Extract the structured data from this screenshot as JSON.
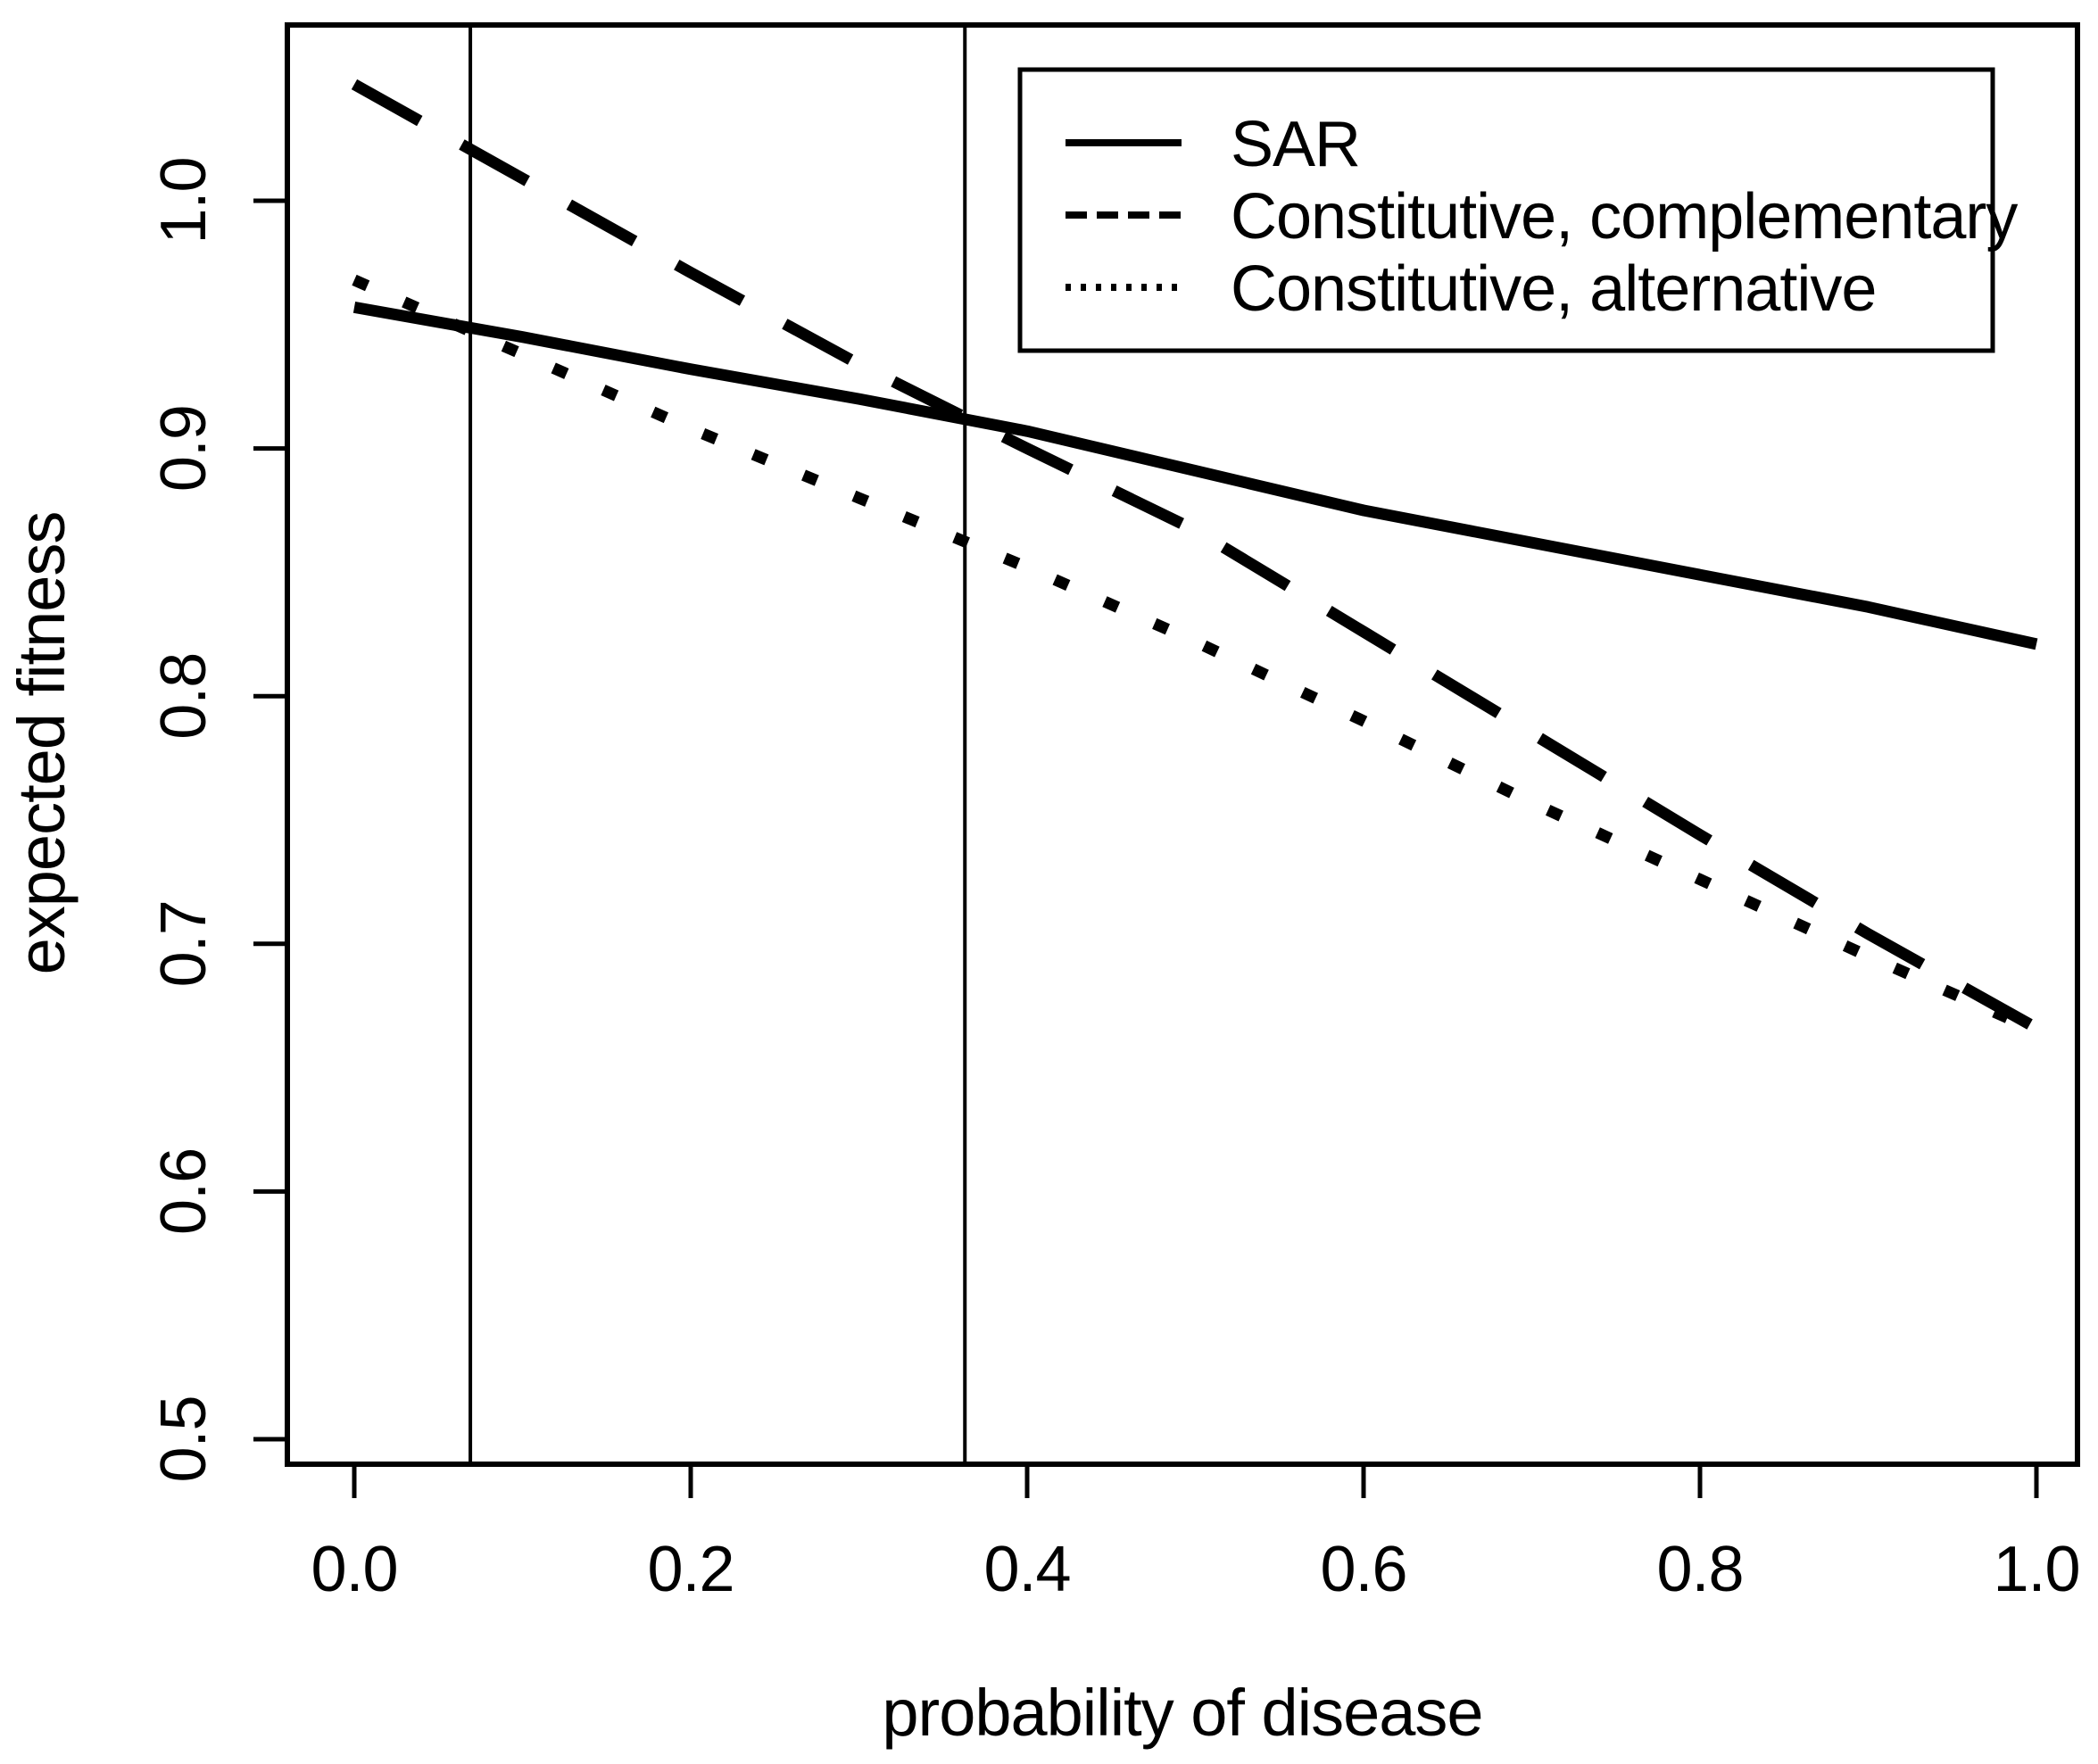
{
  "chart_data": {
    "type": "line",
    "title": "",
    "xlabel": "probability of disease",
    "ylabel": "expected fitness",
    "x_tick_values": [
      0.0,
      0.2,
      0.4,
      0.6,
      0.8,
      1.0
    ],
    "x_tick_labels": [
      "0.0",
      "0.2",
      "0.4",
      "0.6",
      "0.8",
      "1.0"
    ],
    "y_tick_values": [
      1.0,
      0.9,
      0.8,
      0.7,
      0.6,
      0.5
    ],
    "y_tick_labels": [
      "1.0",
      "0.9",
      "0.8",
      "0.7",
      "0.6",
      "0.5"
    ],
    "xlim": [
      -0.04,
      1.02
    ],
    "ylim": [
      0.49,
      1.07
    ],
    "grid": false,
    "axis_color": "#000000",
    "line_color": "#000000",
    "background_color": "#ffffff",
    "x": [
      0.0,
      0.1,
      0.2,
      0.3,
      0.4,
      0.5,
      0.6,
      0.7,
      0.8,
      0.9,
      1.0
    ],
    "series": [
      {
        "name": "SAR",
        "style": "solid",
        "values": [
          0.957,
          0.945,
          0.932,
          0.92,
          0.907,
          0.891,
          0.875,
          0.862,
          0.849,
          0.836,
          0.821
        ]
      },
      {
        "name": "Constitutive, complementary",
        "style": "dashed",
        "values": [
          1.047,
          1.009,
          0.971,
          0.934,
          0.9,
          0.867,
          0.826,
          0.785,
          0.744,
          0.704,
          0.666
        ]
      },
      {
        "name": "Constitutive, alternative",
        "style": "dotted",
        "values": [
          0.968,
          0.938,
          0.908,
          0.88,
          0.852,
          0.822,
          0.79,
          0.757,
          0.726,
          0.695,
          0.665
        ]
      }
    ],
    "vlines": [
      0.069,
      0.363
    ],
    "legend_position": "top-right"
  }
}
